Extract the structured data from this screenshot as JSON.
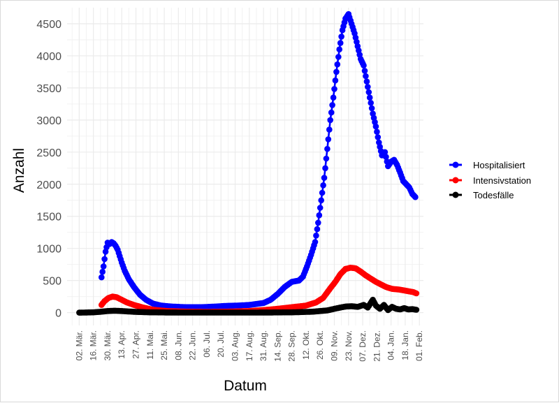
{
  "chart_data": {
    "type": "line",
    "title": "",
    "xlabel": "Datum",
    "ylabel": "Anzahl",
    "x_range": [
      "2020-02-19",
      "2021-02-05"
    ],
    "ylim": [
      -200,
      4750
    ],
    "y_ticks": [
      0,
      500,
      1000,
      1500,
      2000,
      2500,
      3000,
      3500,
      4000,
      4500
    ],
    "x_ticks": [
      {
        "date": "2020-03-02",
        "label": "02. Mär."
      },
      {
        "date": "2020-03-16",
        "label": "16. Mär."
      },
      {
        "date": "2020-03-30",
        "label": "30. Mär."
      },
      {
        "date": "2020-04-13",
        "label": "13. Apr."
      },
      {
        "date": "2020-04-27",
        "label": "27. Apr."
      },
      {
        "date": "2020-05-11",
        "label": "11. Mai."
      },
      {
        "date": "2020-05-25",
        "label": "25. Mai."
      },
      {
        "date": "2020-06-08",
        "label": "08. Jun."
      },
      {
        "date": "2020-06-22",
        "label": "22. Jun."
      },
      {
        "date": "2020-07-06",
        "label": "06. Jul."
      },
      {
        "date": "2020-07-20",
        "label": "20. Jul."
      },
      {
        "date": "2020-08-03",
        "label": "03. Aug."
      },
      {
        "date": "2020-08-17",
        "label": "17. Aug."
      },
      {
        "date": "2020-08-31",
        "label": "31. Aug."
      },
      {
        "date": "2020-09-14",
        "label": "14. Sep."
      },
      {
        "date": "2020-09-28",
        "label": "28. Sep."
      },
      {
        "date": "2020-10-12",
        "label": "12. Okt."
      },
      {
        "date": "2020-10-26",
        "label": "26. Okt."
      },
      {
        "date": "2020-11-09",
        "label": "09. Nov."
      },
      {
        "date": "2020-11-23",
        "label": "23. Nov."
      },
      {
        "date": "2020-12-07",
        "label": "07. Dez."
      },
      {
        "date": "2020-12-21",
        "label": "21. Dez."
      },
      {
        "date": "2021-01-04",
        "label": "04. Jan."
      },
      {
        "date": "2021-01-18",
        "label": "18. Jan."
      },
      {
        "date": "2021-02-01",
        "label": "01. Feb."
      }
    ],
    "grid": true,
    "legend_position": "right",
    "series": [
      {
        "name": "Hospitalisiert",
        "color": "#0000FF",
        "points": [
          [
            "2020-03-24",
            550
          ],
          [
            "2020-03-26",
            720
          ],
          [
            "2020-03-28",
            950
          ],
          [
            "2020-03-30",
            1090
          ],
          [
            "2020-04-01",
            1070
          ],
          [
            "2020-04-03",
            1100
          ],
          [
            "2020-04-05",
            1080
          ],
          [
            "2020-04-07",
            1040
          ],
          [
            "2020-04-09",
            980
          ],
          [
            "2020-04-11",
            880
          ],
          [
            "2020-04-13",
            780
          ],
          [
            "2020-04-16",
            650
          ],
          [
            "2020-04-20",
            520
          ],
          [
            "2020-04-25",
            400
          ],
          [
            "2020-05-01",
            280
          ],
          [
            "2020-05-07",
            200
          ],
          [
            "2020-05-14",
            140
          ],
          [
            "2020-05-22",
            110
          ],
          [
            "2020-06-01",
            95
          ],
          [
            "2020-06-15",
            85
          ],
          [
            "2020-07-01",
            85
          ],
          [
            "2020-07-15",
            95
          ],
          [
            "2020-07-25",
            105
          ],
          [
            "2020-08-05",
            110
          ],
          [
            "2020-08-17",
            120
          ],
          [
            "2020-08-31",
            150
          ],
          [
            "2020-09-07",
            200
          ],
          [
            "2020-09-14",
            290
          ],
          [
            "2020-09-21",
            400
          ],
          [
            "2020-09-28",
            480
          ],
          [
            "2020-10-05",
            500
          ],
          [
            "2020-10-09",
            560
          ],
          [
            "2020-10-13",
            720
          ],
          [
            "2020-10-17",
            900
          ],
          [
            "2020-10-21",
            1100
          ],
          [
            "2020-10-24",
            1400
          ],
          [
            "2020-10-27",
            1750
          ],
          [
            "2020-10-30",
            2100
          ],
          [
            "2020-11-02",
            2550
          ],
          [
            "2020-11-05",
            3000
          ],
          [
            "2020-11-08",
            3350
          ],
          [
            "2020-11-11",
            3750
          ],
          [
            "2020-11-14",
            4100
          ],
          [
            "2020-11-17",
            4400
          ],
          [
            "2020-11-20",
            4580
          ],
          [
            "2020-11-23",
            4650
          ],
          [
            "2020-11-26",
            4500
          ],
          [
            "2020-11-29",
            4350
          ],
          [
            "2020-12-02",
            4150
          ],
          [
            "2020-12-05",
            3950
          ],
          [
            "2020-12-08",
            3850
          ],
          [
            "2020-12-11",
            3600
          ],
          [
            "2020-12-14",
            3350
          ],
          [
            "2020-12-17",
            3100
          ],
          [
            "2020-12-20",
            2900
          ],
          [
            "2020-12-23",
            2650
          ],
          [
            "2020-12-26",
            2450
          ],
          [
            "2020-12-29",
            2500
          ],
          [
            "2021-01-01",
            2280
          ],
          [
            "2021-01-04",
            2350
          ],
          [
            "2021-01-07",
            2380
          ],
          [
            "2021-01-10",
            2300
          ],
          [
            "2021-01-13",
            2180
          ],
          [
            "2021-01-16",
            2050
          ],
          [
            "2021-01-19",
            2000
          ],
          [
            "2021-01-22",
            1950
          ],
          [
            "2021-01-25",
            1850
          ],
          [
            "2021-01-28",
            1800
          ]
        ]
      },
      {
        "name": "Intensivstation",
        "color": "#FF0000",
        "points": [
          [
            "2020-03-24",
            120
          ],
          [
            "2020-03-27",
            180
          ],
          [
            "2020-03-31",
            230
          ],
          [
            "2020-04-04",
            250
          ],
          [
            "2020-04-08",
            240
          ],
          [
            "2020-04-13",
            200
          ],
          [
            "2020-04-18",
            160
          ],
          [
            "2020-04-25",
            120
          ],
          [
            "2020-05-04",
            80
          ],
          [
            "2020-05-14",
            45
          ],
          [
            "2020-05-28",
            25
          ],
          [
            "2020-06-15",
            15
          ],
          [
            "2020-07-06",
            12
          ],
          [
            "2020-07-27",
            15
          ],
          [
            "2020-08-17",
            25
          ],
          [
            "2020-08-31",
            40
          ],
          [
            "2020-09-14",
            60
          ],
          [
            "2020-09-28",
            85
          ],
          [
            "2020-10-12",
            110
          ],
          [
            "2020-10-22",
            160
          ],
          [
            "2020-10-29",
            230
          ],
          [
            "2020-11-05",
            380
          ],
          [
            "2020-11-10",
            480
          ],
          [
            "2020-11-15",
            600
          ],
          [
            "2020-11-20",
            680
          ],
          [
            "2020-11-25",
            700
          ],
          [
            "2020-11-30",
            690
          ],
          [
            "2020-12-05",
            640
          ],
          [
            "2020-12-10",
            580
          ],
          [
            "2020-12-15",
            530
          ],
          [
            "2020-12-20",
            480
          ],
          [
            "2020-12-25",
            440
          ],
          [
            "2020-12-30",
            400
          ],
          [
            "2021-01-05",
            370
          ],
          [
            "2021-01-12",
            360
          ],
          [
            "2021-01-19",
            340
          ],
          [
            "2021-01-26",
            320
          ],
          [
            "2021-01-29",
            300
          ]
        ]
      },
      {
        "name": "Todesfälle",
        "color": "#000000",
        "points": [
          [
            "2020-03-02",
            0
          ],
          [
            "2020-03-16",
            5
          ],
          [
            "2020-03-24",
            15
          ],
          [
            "2020-03-30",
            25
          ],
          [
            "2020-04-06",
            30
          ],
          [
            "2020-04-13",
            25
          ],
          [
            "2020-04-20",
            18
          ],
          [
            "2020-04-27",
            12
          ],
          [
            "2020-05-11",
            5
          ],
          [
            "2020-06-01",
            2
          ],
          [
            "2020-07-01",
            1
          ],
          [
            "2020-08-01",
            1
          ],
          [
            "2020-09-01",
            2
          ],
          [
            "2020-09-28",
            5
          ],
          [
            "2020-10-19",
            15
          ],
          [
            "2020-11-02",
            35
          ],
          [
            "2020-11-12",
            70
          ],
          [
            "2020-11-20",
            95
          ],
          [
            "2020-11-26",
            100
          ],
          [
            "2020-12-02",
            90
          ],
          [
            "2020-12-08",
            120
          ],
          [
            "2020-12-12",
            80
          ],
          [
            "2020-12-17",
            200
          ],
          [
            "2020-12-20",
            110
          ],
          [
            "2020-12-24",
            60
          ],
          [
            "2020-12-28",
            120
          ],
          [
            "2021-01-01",
            40
          ],
          [
            "2021-01-05",
            90
          ],
          [
            "2021-01-09",
            60
          ],
          [
            "2021-01-13",
            50
          ],
          [
            "2021-01-17",
            70
          ],
          [
            "2021-01-21",
            50
          ],
          [
            "2021-01-25",
            55
          ],
          [
            "2021-01-29",
            45
          ]
        ]
      }
    ]
  }
}
